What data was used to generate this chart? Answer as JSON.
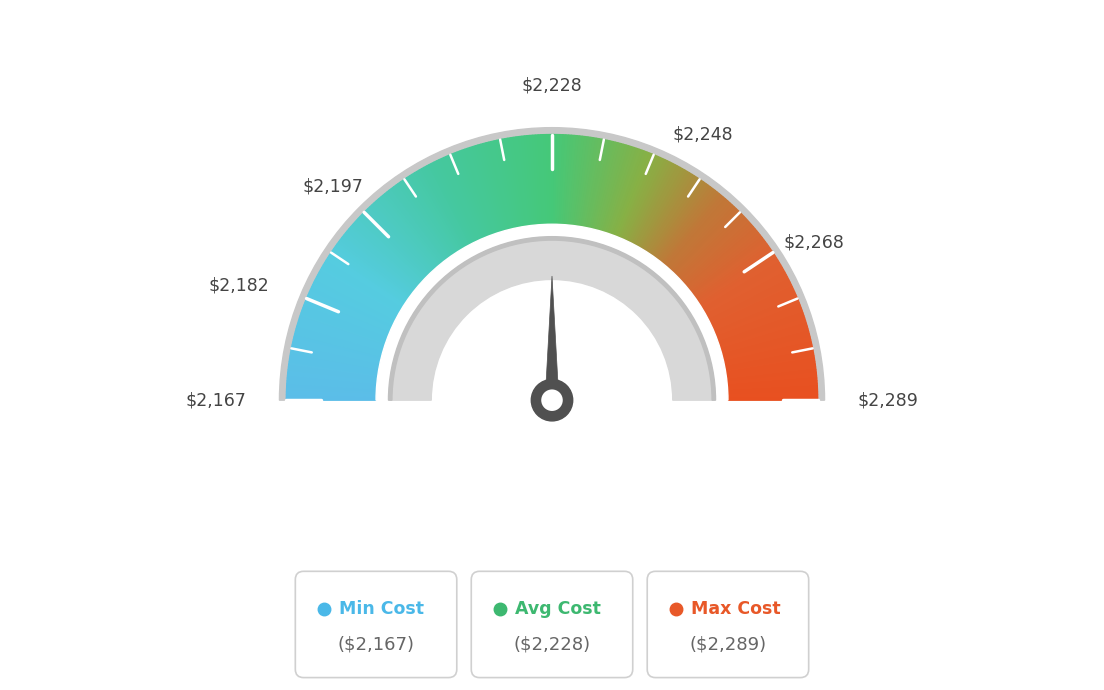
{
  "min_val": 2167,
  "avg_val": 2228,
  "max_val": 2289,
  "tick_labels": [
    {
      "value": 2167,
      "label": "$2,167"
    },
    {
      "value": 2182,
      "label": "$2,182"
    },
    {
      "value": 2197,
      "label": "$2,197"
    },
    {
      "value": 2228,
      "label": "$2,228"
    },
    {
      "value": 2248,
      "label": "$2,248"
    },
    {
      "value": 2268,
      "label": "$2,268"
    },
    {
      "value": 2289,
      "label": "$2,289"
    }
  ],
  "needle_value": 2228,
  "background_color": "#ffffff",
  "color_stops": [
    [
      0.0,
      "#5bbde8"
    ],
    [
      0.18,
      "#55cce0"
    ],
    [
      0.35,
      "#45c8a0"
    ],
    [
      0.5,
      "#45c878"
    ],
    [
      0.62,
      "#88b045"
    ],
    [
      0.72,
      "#c07838"
    ],
    [
      0.82,
      "#e06030"
    ],
    [
      1.0,
      "#e85020"
    ]
  ],
  "legend_items": [
    {
      "label": "Min Cost",
      "value": "($2,167)",
      "color": "#4ab8e8"
    },
    {
      "label": "Avg Cost",
      "value": "($2,228)",
      "color": "#3db870"
    },
    {
      "label": "Max Cost",
      "value": "($2,289)",
      "color": "#e85828"
    }
  ],
  "figsize": [
    11.04,
    6.9
  ],
  "dpi": 100
}
